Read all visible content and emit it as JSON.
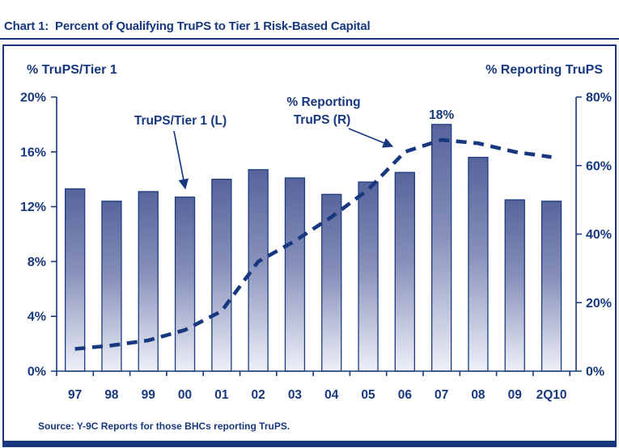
{
  "title": "Chart 1:  Percent of Qualifying TruPS to Tier 1 Risk-Based Capital",
  "source": "Source: Y-9C Reports for those BHCs reporting TruPS.",
  "colors": {
    "navy": "#17387E",
    "bar_top": "#57649C",
    "bar_mid": "#8790BA",
    "bar_bottom": "#EEF0F8",
    "bar_border": "#1B3C7E"
  },
  "chart_data": {
    "type": "bar",
    "title": "Chart 1: Percent of Qualifying TruPS to Tier 1 Risk-Based Capital",
    "categories": [
      "97",
      "98",
      "99",
      "00",
      "01",
      "02",
      "03",
      "04",
      "05",
      "06",
      "07",
      "08",
      "09",
      "2Q10"
    ],
    "series": [
      {
        "name": "TruPS/Tier 1 (L)",
        "type": "bar",
        "axis": "left",
        "values": [
          13.3,
          12.4,
          13.1,
          12.7,
          14.0,
          14.7,
          14.1,
          12.9,
          13.8,
          14.5,
          18.0,
          15.6,
          12.5,
          12.4
        ]
      },
      {
        "name": "% Reporting TruPS (R)",
        "type": "line",
        "style": "dashed",
        "axis": "right",
        "values": [
          6.5,
          7.5,
          9.0,
          12.0,
          17.5,
          32.0,
          38.0,
          45.0,
          53.0,
          64.0,
          67.5,
          66.5,
          64.0,
          62.5
        ]
      }
    ],
    "left_axis": {
      "title": "% TruPS/Tier 1",
      "min": 0,
      "max": 20,
      "tick_step": 4,
      "tick_values": [
        0,
        4,
        8,
        12,
        16,
        20
      ],
      "tick_labels": [
        "0%",
        "4%",
        "8%",
        "12%",
        "16%",
        "20%"
      ]
    },
    "right_axis": {
      "title": "% Reporting TruPS",
      "min": 0,
      "max": 80,
      "tick_step": 20,
      "tick_values": [
        0,
        20,
        40,
        60,
        80
      ],
      "tick_labels": [
        "0%",
        "20%",
        "40%",
        "60%",
        "80%"
      ]
    },
    "grid": false,
    "legend_position": "annotated-arrows",
    "annotations": {
      "bar_value_label": {
        "index": 10,
        "text": "18%"
      },
      "bar_series_label": {
        "text": "TruPS/Tier 1 (L)"
      },
      "line_series_label": {
        "lines": [
          "% Reporting",
          "TruPS (R)"
        ]
      }
    }
  }
}
